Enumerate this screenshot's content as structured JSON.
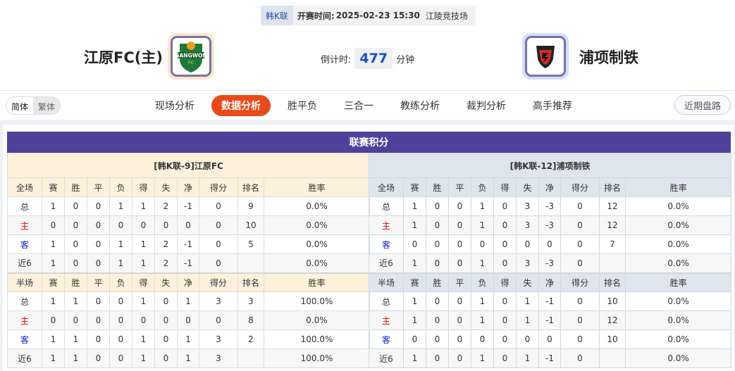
{
  "match": {
    "league": "韩K联",
    "time_label": "开赛时间:",
    "time": "2025-02-23 15:30",
    "venue": "江陵竞技场"
  },
  "home": {
    "name": "江原FC(主)",
    "logo_text": "GANGWON FC",
    "logo_bg": "#fde6c8"
  },
  "away": {
    "name": "浦项制铁",
    "logo_bg": "#cfe0fb"
  },
  "countdown": {
    "label": "倒计时:",
    "value": "477",
    "unit": "分钟"
  },
  "lang": {
    "simplified": "简体",
    "traditional": "繁体"
  },
  "tabs": [
    {
      "label": "现场分析"
    },
    {
      "label": "数据分析",
      "active": true
    },
    {
      "label": "胜平负"
    },
    {
      "label": "三合一"
    },
    {
      "label": "教练分析"
    },
    {
      "label": "裁判分析"
    },
    {
      "label": "高手推荐"
    }
  ],
  "recent_button": "近期盘路",
  "section_title": "联赛积分",
  "columns_full": [
    "全场",
    "赛",
    "胜",
    "平",
    "负",
    "得",
    "失",
    "净",
    "得分",
    "排名",
    "胜率"
  ],
  "columns_half": [
    "半场",
    "赛",
    "胜",
    "平",
    "负",
    "得",
    "失",
    "净",
    "得分",
    "排名",
    "胜率"
  ],
  "tables": [
    {
      "team": "[韩K联-9]江原FC",
      "full": [
        [
          "总",
          "1",
          "0",
          "0",
          "1",
          "1",
          "2",
          "-1",
          "0",
          "9",
          "0.0%"
        ],
        [
          "主",
          "0",
          "0",
          "0",
          "0",
          "0",
          "0",
          "0",
          "0",
          "10",
          "0.0%"
        ],
        [
          "客",
          "1",
          "0",
          "0",
          "1",
          "1",
          "2",
          "-1",
          "0",
          "5",
          "0.0%"
        ],
        [
          "近6",
          "1",
          "0",
          "0",
          "1",
          "1",
          "2",
          "-1",
          "0",
          "",
          "0.0%"
        ]
      ],
      "half": [
        [
          "总",
          "1",
          "1",
          "0",
          "0",
          "1",
          "0",
          "1",
          "3",
          "3",
          "100.0%"
        ],
        [
          "主",
          "0",
          "0",
          "0",
          "0",
          "0",
          "0",
          "0",
          "0",
          "8",
          "0.0%"
        ],
        [
          "客",
          "1",
          "1",
          "0",
          "0",
          "1",
          "0",
          "1",
          "3",
          "2",
          "100.0%"
        ],
        [
          "近6",
          "1",
          "1",
          "0",
          "0",
          "1",
          "0",
          "1",
          "3",
          "",
          "100.0%"
        ]
      ]
    },
    {
      "team": "[韩K联-12]浦项制铁",
      "full": [
        [
          "总",
          "1",
          "0",
          "0",
          "1",
          "0",
          "3",
          "-3",
          "0",
          "12",
          "0.0%"
        ],
        [
          "主",
          "1",
          "0",
          "0",
          "1",
          "0",
          "3",
          "-3",
          "0",
          "12",
          "0.0%"
        ],
        [
          "客",
          "0",
          "0",
          "0",
          "0",
          "0",
          "0",
          "0",
          "0",
          "7",
          "0.0%"
        ],
        [
          "近6",
          "1",
          "0",
          "0",
          "1",
          "0",
          "3",
          "-3",
          "0",
          "",
          "0.0%"
        ]
      ],
      "half": [
        [
          "总",
          "1",
          "0",
          "0",
          "1",
          "0",
          "1",
          "-1",
          "0",
          "10",
          "0.0%"
        ],
        [
          "主",
          "1",
          "0",
          "0",
          "1",
          "0",
          "1",
          "-1",
          "0",
          "12",
          "0.0%"
        ],
        [
          "客",
          "0",
          "0",
          "0",
          "0",
          "0",
          "0",
          "0",
          "0",
          "10",
          "0.0%"
        ],
        [
          "近6",
          "1",
          "0",
          "0",
          "1",
          "0",
          "1",
          "-1",
          "0",
          "",
          "0.0%"
        ]
      ]
    }
  ]
}
